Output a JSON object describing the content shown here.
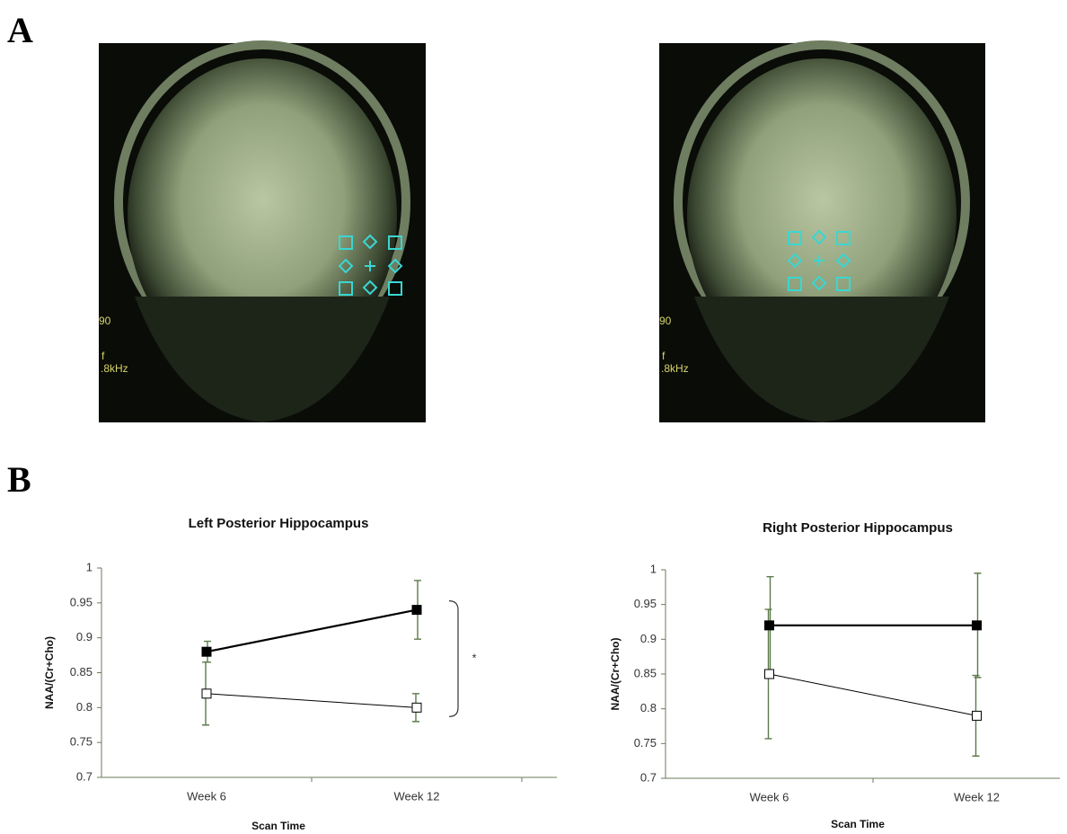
{
  "panel_labels": [
    "A",
    "B"
  ],
  "images": [
    {
      "overlay_texts": [
        "90",
        "f",
        ".8kHz"
      ]
    },
    {
      "overlay_texts": [
        "90",
        "f",
        ".8kHz"
      ]
    }
  ],
  "chart_data": [
    {
      "type": "line",
      "title": "Left Posterior Hippocampus",
      "y_label": "NAA/(Cr+Cho)",
      "x_label": "Scan Time",
      "categories": [
        "Week 6",
        "Week 12"
      ],
      "series": [
        {
          "color": "#000000",
          "values": [
            0.88,
            0.94
          ],
          "errors": [
            0.015,
            0.042
          ]
        },
        {
          "color": "#ffffff",
          "values": [
            0.82,
            0.8
          ],
          "errors": [
            0.045,
            0.02
          ]
        }
      ],
      "ylim": [
        0.7,
        1
      ],
      "yticks": [
        0.7,
        0.75,
        0.8,
        0.85,
        0.9,
        0.95,
        1
      ],
      "annotation": "*"
    },
    {
      "type": "line",
      "title": "Right Posterior Hippocampus",
      "y_label": "NAA/(Cr+Cho)",
      "x_label": "Scan Time",
      "categories": [
        "Week 6",
        "Week 12"
      ],
      "series": [
        {
          "color": "#000000",
          "values": [
            0.92,
            0.92
          ],
          "errors": [
            0.07,
            0.075
          ]
        },
        {
          "color": "#ffffff",
          "values": [
            0.85,
            0.79
          ],
          "errors": [
            0.093,
            0.058
          ]
        }
      ],
      "ylim": [
        0.7,
        1
      ],
      "yticks": [
        0.7,
        0.75,
        0.8,
        0.85,
        0.9,
        0.95,
        1
      ]
    }
  ]
}
